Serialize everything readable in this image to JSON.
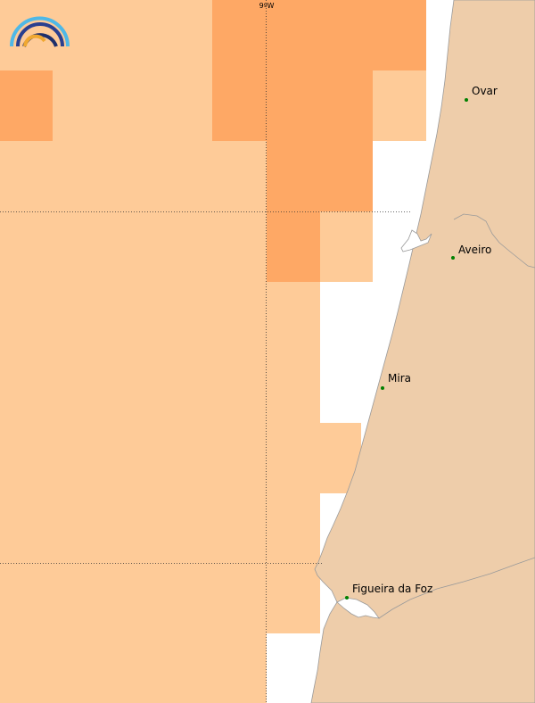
{
  "map": {
    "grid_labels": {
      "lon_9w": "9ºW"
    },
    "cities": [
      {
        "name": "Ovar"
      },
      {
        "name": "Aveiro"
      },
      {
        "name": "Mira"
      },
      {
        "name": "Figueira da Foz"
      }
    ],
    "colors": {
      "land": "#eecdaa",
      "sea": "#ffffff",
      "cell_light": "#fecb98",
      "cell_dark": "#fea865",
      "coastline": "#9a9a9a",
      "city_dot": "#008000",
      "gridline": "#333333"
    },
    "logo": {
      "icon": "rainbow-logo-icon"
    }
  }
}
